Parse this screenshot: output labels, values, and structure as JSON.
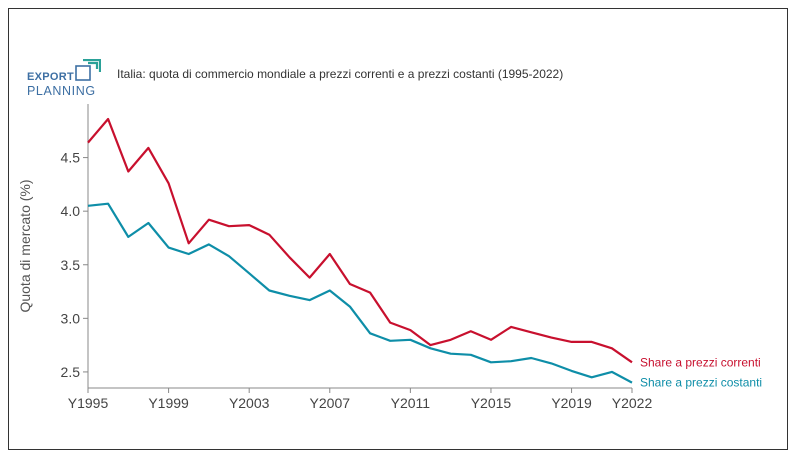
{
  "logo": {
    "top": "EXPORT",
    "bottom": "PLANNING"
  },
  "title": "Italia: quota di commercio mondiale a prezzi correnti e a prezzi costanti (1995-2022)",
  "chart_data": {
    "type": "line",
    "title": "Italia: quota di commercio mondiale a prezzi correnti e a prezzi costanti (1995-2022)",
    "ylabel": "Quota di mercato (%)",
    "xlabel": "",
    "x": [
      1995,
      1996,
      1997,
      1998,
      1999,
      2000,
      2001,
      2002,
      2003,
      2004,
      2005,
      2006,
      2007,
      2008,
      2009,
      2010,
      2011,
      2012,
      2013,
      2014,
      2015,
      2016,
      2017,
      2018,
      2019,
      2020,
      2021,
      2022
    ],
    "x_ticks": [
      {
        "value": 1995,
        "label": "Y1995"
      },
      {
        "value": 1999,
        "label": "Y1999"
      },
      {
        "value": 2003,
        "label": "Y2003"
      },
      {
        "value": 2007,
        "label": "Y2007"
      },
      {
        "value": 2011,
        "label": "Y2011"
      },
      {
        "value": 2015,
        "label": "Y2015"
      },
      {
        "value": 2019,
        "label": "Y2019"
      },
      {
        "value": 2022,
        "label": "Y2022"
      }
    ],
    "y_ticks": [
      {
        "value": 2.5,
        "label": "2.5"
      },
      {
        "value": 3.0,
        "label": "3.0"
      },
      {
        "value": 3.5,
        "label": "3.5"
      },
      {
        "value": 4.0,
        "label": "4.0"
      },
      {
        "value": 4.5,
        "label": "4.5"
      }
    ],
    "xlim": [
      1995,
      2022
    ],
    "ylim": [
      2.35,
      5.0
    ],
    "grid": false,
    "legend": "end-of-line labels",
    "series": [
      {
        "name": "Share a prezzi correnti",
        "color": "#c8102e",
        "values": [
          4.64,
          4.86,
          4.37,
          4.59,
          4.26,
          3.7,
          3.92,
          3.86,
          3.87,
          3.78,
          3.57,
          3.38,
          3.6,
          3.32,
          3.24,
          2.96,
          2.89,
          2.75,
          2.8,
          2.88,
          2.8,
          2.92,
          2.87,
          2.82,
          2.78,
          2.78,
          2.72,
          2.59
        ]
      },
      {
        "name": "Share a prezzi costanti",
        "color": "#0e8ea8",
        "values": [
          4.05,
          4.07,
          3.76,
          3.89,
          3.66,
          3.6,
          3.69,
          3.58,
          3.42,
          3.26,
          3.21,
          3.17,
          3.26,
          3.11,
          2.86,
          2.79,
          2.8,
          2.72,
          2.67,
          2.66,
          2.59,
          2.6,
          2.63,
          2.58,
          2.51,
          2.45,
          2.5,
          2.4
        ]
      }
    ]
  }
}
